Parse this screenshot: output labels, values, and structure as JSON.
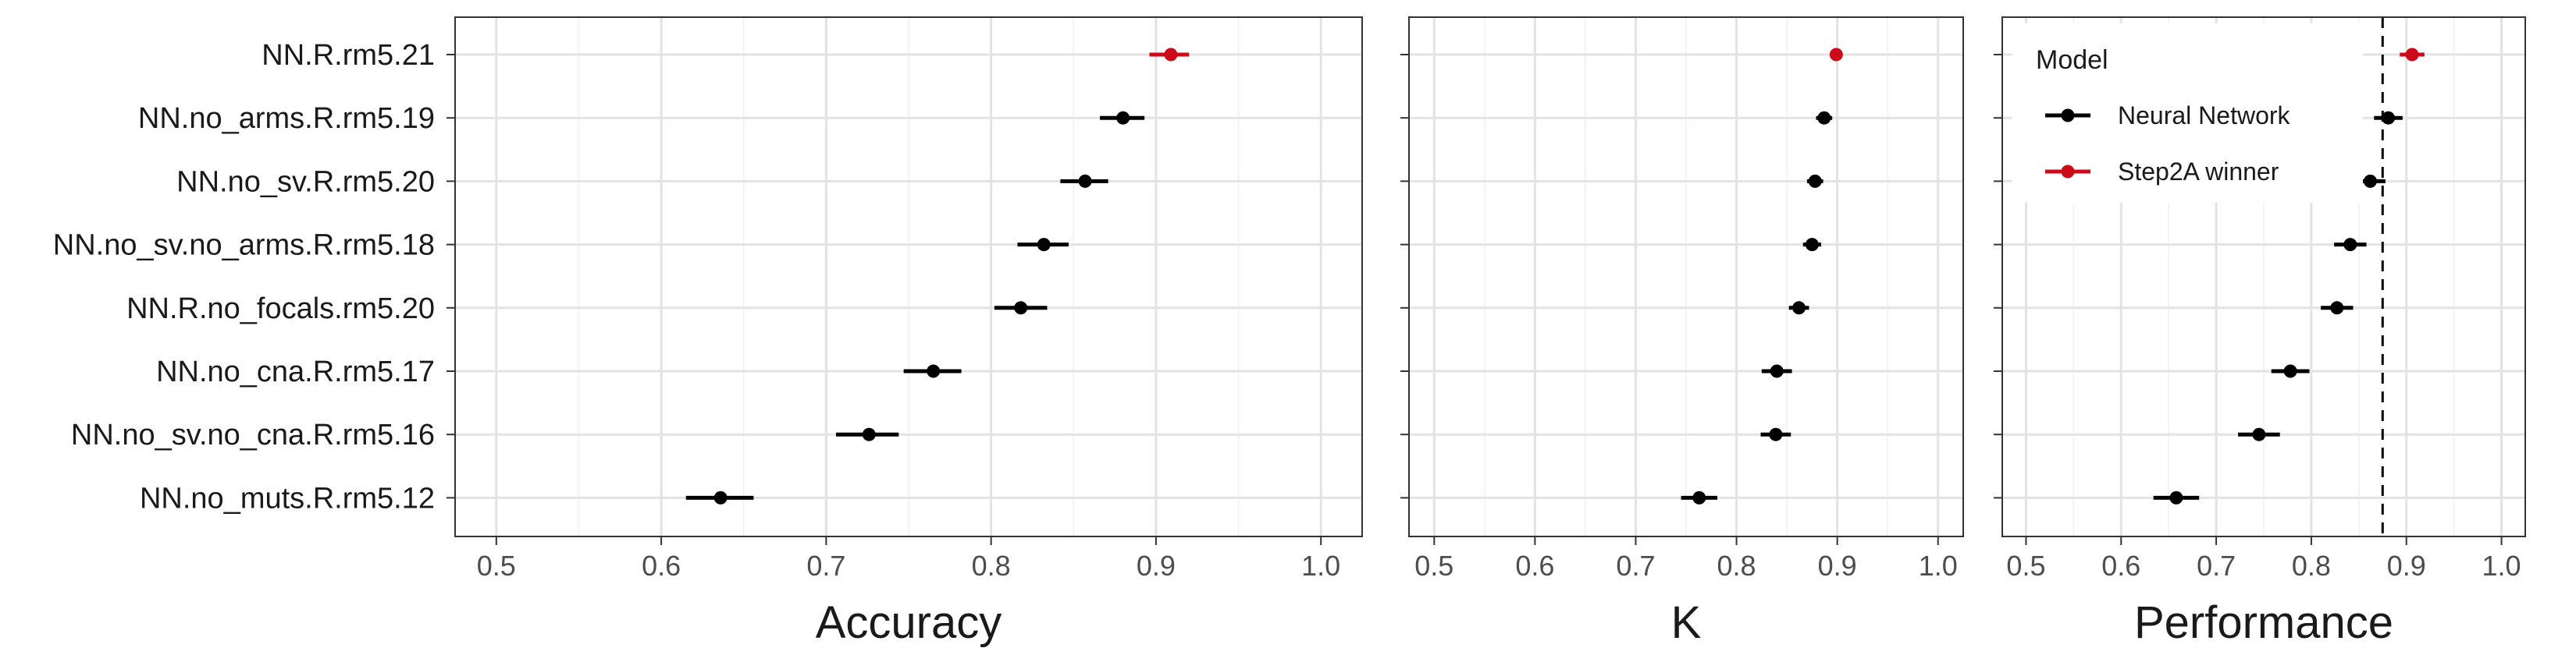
{
  "chart_data": {
    "type": "scatter",
    "style": "dot-and-whisker",
    "y_categories": [
      "NN.R.rm5.21",
      "NN.no_arms.R.rm5.19",
      "NN.no_sv.R.rm5.20",
      "NN.no_sv.no_arms.R.rm5.18",
      "NN.R.no_focals.rm5.20",
      "NN.no_cna.R.rm5.17",
      "NN.no_sv.no_cna.R.rm5.16",
      "NN.no_muts.R.rm5.12"
    ],
    "category_model": [
      "Step2A winner",
      "Neural Network",
      "Neural Network",
      "Neural Network",
      "Neural Network",
      "Neural Network",
      "Neural Network",
      "Neural Network"
    ],
    "xlim": [
      0.475,
      1.025
    ],
    "xticks": [
      0.5,
      0.6,
      0.7,
      0.8,
      0.9,
      1.0
    ],
    "xtick_labels": [
      "0.5",
      "0.6",
      "0.7",
      "0.8",
      "0.9",
      "1.0"
    ],
    "panels": [
      {
        "xlabel": "Accuracy",
        "estimate": [
          0.909,
          0.88,
          0.857,
          0.832,
          0.818,
          0.765,
          0.726,
          0.636
        ],
        "lower": [
          0.896,
          0.866,
          0.842,
          0.816,
          0.802,
          0.747,
          0.706,
          0.615
        ],
        "upper": [
          0.92,
          0.893,
          0.871,
          0.847,
          0.834,
          0.782,
          0.744,
          0.656
        ]
      },
      {
        "xlabel": "K",
        "estimate": [
          0.899,
          0.887,
          0.878,
          0.875,
          0.862,
          0.84,
          0.839,
          0.763
        ],
        "lower": [
          0.895,
          0.879,
          0.87,
          0.866,
          0.852,
          0.825,
          0.824,
          0.745
        ],
        "upper": [
          0.903,
          0.895,
          0.886,
          0.884,
          0.872,
          0.855,
          0.854,
          0.781
        ]
      },
      {
        "xlabel": "Performance",
        "estimate": [
          0.906,
          0.881,
          0.862,
          0.841,
          0.827,
          0.778,
          0.745,
          0.658
        ],
        "lower": [
          0.893,
          0.866,
          0.846,
          0.824,
          0.81,
          0.758,
          0.723,
          0.634
        ],
        "upper": [
          0.919,
          0.896,
          0.878,
          0.858,
          0.844,
          0.798,
          0.767,
          0.682
        ],
        "reference_line_x": 0.875
      }
    ],
    "legend": {
      "title": "Model",
      "placement": "top-left of third panel",
      "entries": [
        {
          "label": "Neural Network",
          "color": "#000000"
        },
        {
          "label": "Step2A winner",
          "color": "#cc0a18"
        }
      ]
    },
    "grid": true
  }
}
